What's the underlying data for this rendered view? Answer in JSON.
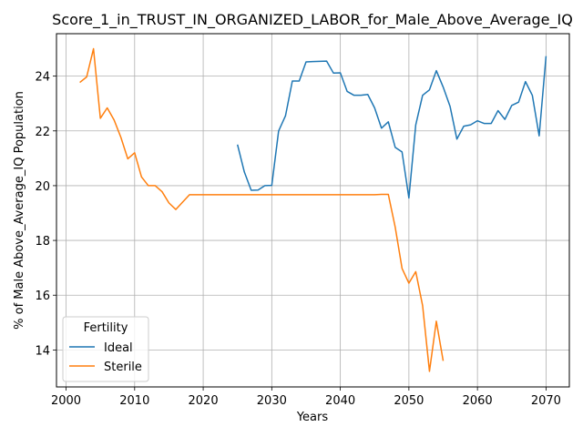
{
  "chart_data": {
    "type": "line",
    "title": "Score_1_in_TRUST_IN_ORGANIZED_LABOR_for_Male_Above_Average_IQ",
    "xlabel": "Years",
    "ylabel": "% of Male Above_Average_IQ Population",
    "xlim": [
      1998.6,
      2073.4
    ],
    "ylim": [
      12.65,
      25.55
    ],
    "xticks": [
      2000,
      2010,
      2020,
      2030,
      2040,
      2050,
      2060,
      2070
    ],
    "yticks": [
      14,
      16,
      18,
      20,
      22,
      24
    ],
    "grid": true,
    "legend": {
      "title": "Fertility",
      "placement": "lower-left"
    },
    "colors": {
      "Ideal": "#1f77b4",
      "Sterile": "#ff7f0e",
      "grid": "#b0b0b0"
    },
    "series": [
      {
        "name": "Ideal",
        "x": [
          2025,
          2026,
          2027,
          2028,
          2029,
          2030,
          2031,
          2032,
          2033,
          2034,
          2035,
          2036,
          2037,
          2038,
          2039,
          2040,
          2041,
          2042,
          2043,
          2044,
          2045,
          2046,
          2047,
          2048,
          2049,
          2050,
          2051,
          2052,
          2053,
          2054,
          2055,
          2056,
          2057,
          2058,
          2059,
          2060,
          2061,
          2062,
          2063,
          2064,
          2065,
          2066,
          2067,
          2068,
          2069,
          2070
        ],
        "values": [
          21.5,
          20.5,
          19.83,
          19.84,
          20.0,
          20.01,
          22.0,
          22.55,
          23.82,
          23.82,
          24.52,
          24.53,
          24.54,
          24.55,
          24.11,
          24.12,
          23.44,
          23.3,
          23.3,
          23.33,
          22.84,
          22.1,
          22.33,
          21.4,
          21.23,
          19.55,
          22.22,
          23.3,
          23.5,
          24.2,
          23.6,
          22.9,
          21.7,
          22.17,
          22.22,
          22.37,
          22.27,
          22.27,
          22.74,
          22.42,
          22.93,
          23.05,
          23.8,
          23.3,
          21.82,
          24.73
        ]
      },
      {
        "name": "Sterile",
        "x": [
          2002,
          2003,
          2004,
          2005,
          2006,
          2007,
          2008,
          2009,
          2010,
          2011,
          2012,
          2013,
          2014,
          2015,
          2016,
          2017,
          2018,
          2019,
          2020,
          2025,
          2030,
          2035,
          2040,
          2045,
          2046,
          2047,
          2048,
          2049,
          2050,
          2051,
          2052,
          2053,
          2054,
          2055
        ],
        "values": [
          23.77,
          23.97,
          25.0,
          22.46,
          22.84,
          22.4,
          21.76,
          20.98,
          21.2,
          20.32,
          20.0,
          20.0,
          19.78,
          19.37,
          19.13,
          19.4,
          19.67,
          19.67,
          19.67,
          19.67,
          19.67,
          19.67,
          19.67,
          19.67,
          19.68,
          19.68,
          18.49,
          16.98,
          16.44,
          16.86,
          15.62,
          13.22,
          15.05,
          13.6
        ]
      }
    ]
  }
}
